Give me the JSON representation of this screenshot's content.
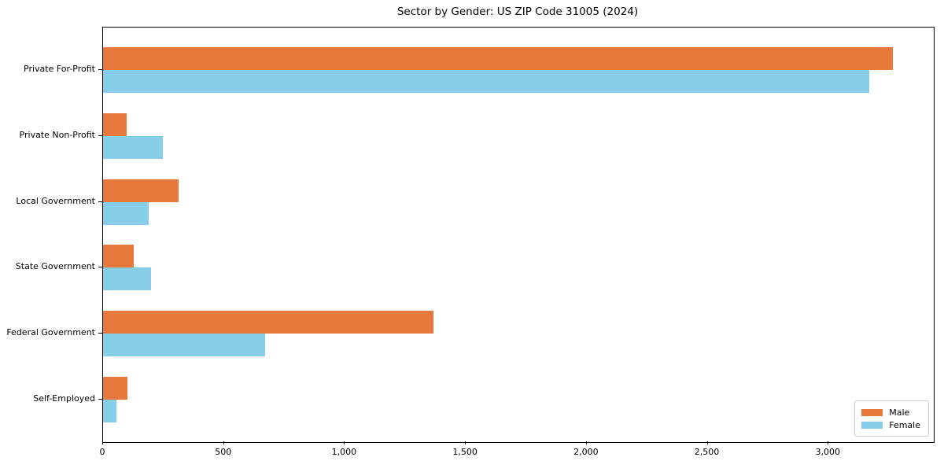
{
  "chart_data": {
    "type": "bar",
    "orientation": "horizontal",
    "title": "Sector by Gender: US ZIP Code 31005 (2024)",
    "categories": [
      "Private For-Profit",
      "Private Non-Profit",
      "Local Government",
      "State Government",
      "Federal Government",
      "Self-Employed"
    ],
    "series": [
      {
        "name": "Male",
        "color": "#e8793d",
        "values": [
          3266,
          98,
          311,
          128,
          1366,
          100
        ]
      },
      {
        "name": "Female",
        "color": "#87ceeb",
        "values": [
          3167,
          248,
          189,
          200,
          670,
          56
        ]
      }
    ],
    "xlabel": "",
    "ylabel": "",
    "xlim": [
      0,
      3435
    ],
    "xticks": [
      0,
      500,
      1000,
      1500,
      2000,
      2500,
      3000
    ],
    "xtick_labels": [
      "0",
      "500",
      "1,000",
      "1,500",
      "2,000",
      "2,500",
      "3,000"
    ],
    "grid": false,
    "bar_height_units": 0.35,
    "legend": {
      "position": "lower right",
      "labels": [
        "Male",
        "Female"
      ]
    },
    "colors": {
      "axis": "#000000",
      "background": "#ffffff",
      "legend_border": "#cccccc",
      "male": "#e8793d",
      "female": "#87ceeb"
    }
  }
}
